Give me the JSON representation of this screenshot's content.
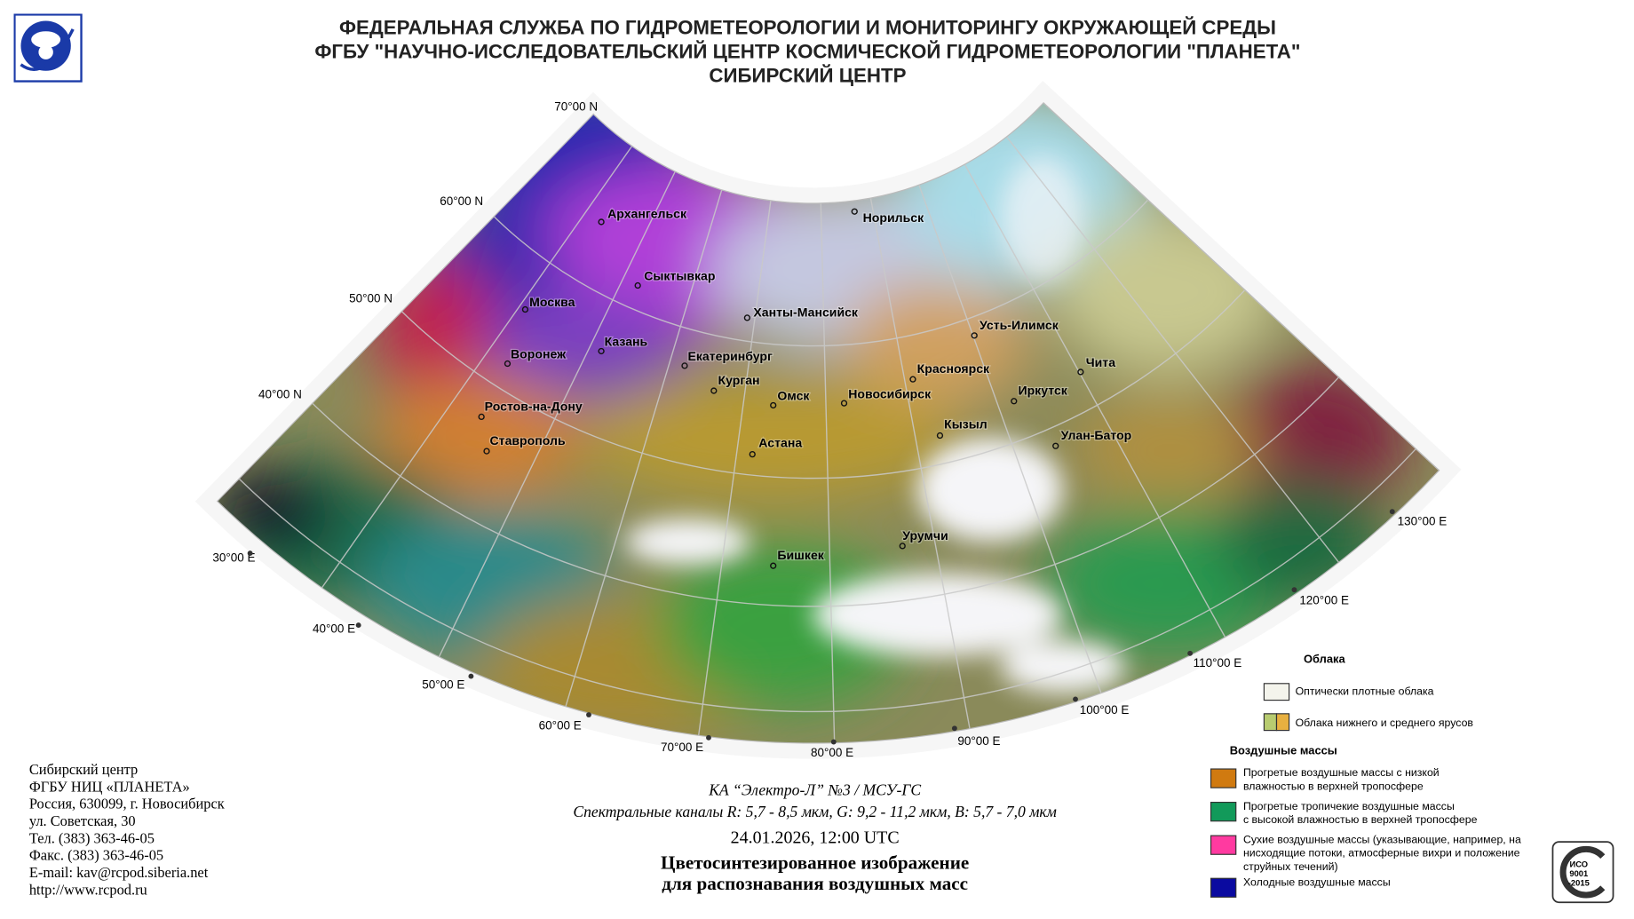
{
  "header": {
    "lines": [
      "ФЕДЕРАЛЬНАЯ СЛУЖБА ПО ГИДРОМЕТЕОРОЛОГИИ И МОНИТОРИНГУ ОКРУЖАЮЩЕЙ СРЕДЫ",
      "ФГБУ \"НАУЧНО-ИССЛЕДОВАТЕЛЬСКИЙ ЦЕНТР КОСМИЧЕСКОЙ ГИДРОМЕТЕОРОЛОГИИ \"ПЛАНЕТА\"",
      "СИБИРСКИЙ ЦЕНТР"
    ]
  },
  "map": {
    "parallels": [
      "70°00 N",
      "60°00 N",
      "50°00 N",
      "40°00 N"
    ],
    "meridians": [
      "30°00 E",
      "40°00 E",
      "50°00 E",
      "60°00 E",
      "70°00 E",
      "80°00 E",
      "90°00 E",
      "100°00 E",
      "110°00 E",
      "120°00 E",
      "130°00 E"
    ],
    "cities": [
      "Архангельск",
      "Сыктывкар",
      "Москва",
      "Казань",
      "Воронеж",
      "Ханты-Мансийск",
      "Норильск",
      "Екатеринбург",
      "Курган",
      "Омск",
      "Новосибирск",
      "Ростов-на-Дону",
      "Ставрополь",
      "Астана",
      "Красноярск",
      "Усть-Илимск",
      "Иркутск",
      "Чита",
      "Кызыл",
      "Улан-Батор",
      "Урумчи",
      "Бишкек"
    ]
  },
  "legend": {
    "clouds_title": "Облака",
    "clouds": [
      "Оптически плотные облака",
      "Облака нижнего и среднего ярусов"
    ],
    "air_title": "Воздушные массы",
    "air": [
      [
        "Прогретые воздушные массы с низкой",
        "влажностью в верхней тропосфере"
      ],
      [
        "Прогретые тропичекие воздушные массы",
        "с высокой влажностью в верхней тропосфере"
      ],
      [
        "Сухие воздушные массы (указывающие, например, на",
        "нисходящие потоки, атмосферные вихри и положение",
        "струйных течений)"
      ],
      [
        "Холодные воздушные массы"
      ]
    ]
  },
  "footer": {
    "lines": [
      "Сибирский центр",
      "ФГБУ НИЦ «ПЛАНЕТА»",
      "Россия, 630099, г. Новосибирск",
      "ул. Советская, 30",
      "Тел. (383) 363-46-05",
      "Факс. (383) 363-46-05",
      "E-mail: kav@rcpod.siberia.net",
      "http://www.rcpod.ru"
    ]
  },
  "caption": {
    "satellite": "КА “Электро-Л” №3 / МСУ-ГС",
    "channels": "Спектральные каналы R: 5,7 - 8,5 мкм, G: 9,2 - 11,2 мкм, B: 5,7 - 7,0 мкм",
    "datetime": "24.01.2026, 12:00 UTC",
    "title": [
      "Цветосинтезированное изображение",
      "для распознавания воздушных масс"
    ]
  },
  "iso": [
    "ИСО",
    "9001",
    "-2015"
  ]
}
